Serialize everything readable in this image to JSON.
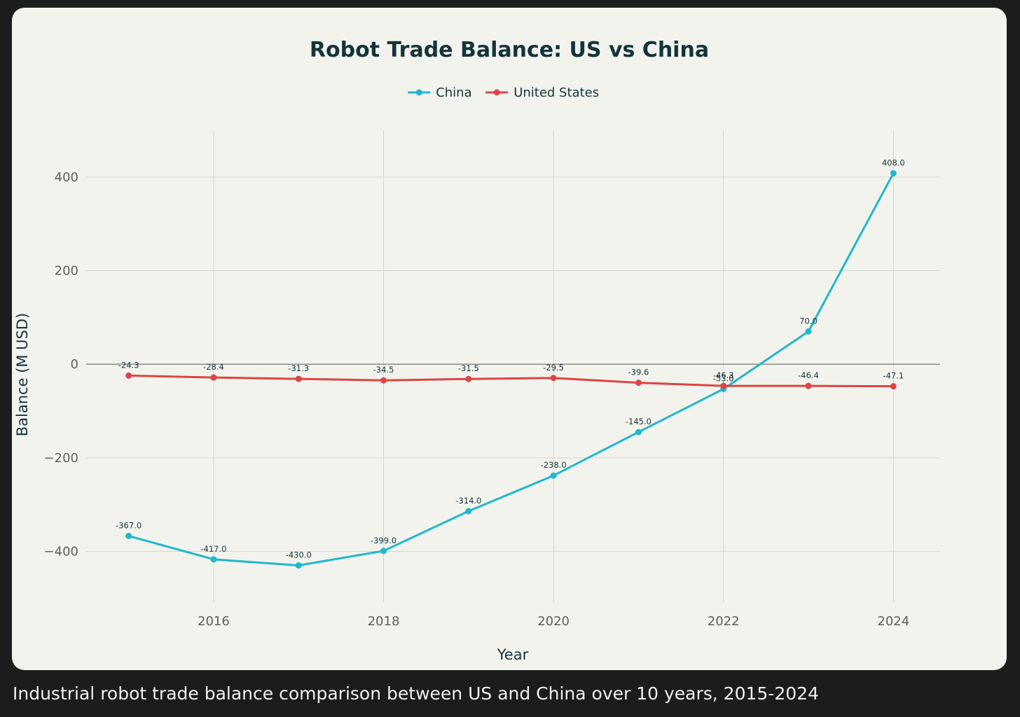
{
  "caption": "Industrial robot trade balance comparison between US and China over 10 years, 2015-2024",
  "chart_data": {
    "type": "line",
    "title": "Robot Trade Balance: US vs China",
    "xlabel": "Year",
    "ylabel": "Balance (M USD)",
    "x": [
      2015,
      2016,
      2017,
      2018,
      2019,
      2020,
      2021,
      2022,
      2023,
      2024
    ],
    "xlim": [
      2014.5,
      2024.55
    ],
    "ylim": [
      -510,
      500
    ],
    "xticks": [
      2016,
      2018,
      2020,
      2022,
      2024
    ],
    "xtick_labels": [
      "2016",
      "2018",
      "2020",
      "2022",
      "2024"
    ],
    "yticks": [
      -400,
      -200,
      0,
      200,
      400
    ],
    "ytick_labels": [
      "−400",
      "−200",
      "0",
      "200",
      "400"
    ],
    "grid": true,
    "legend_position": "top-center",
    "series": [
      {
        "name": "China",
        "color": "#1fb8cd",
        "values": [
          -367.0,
          -417.0,
          -430.0,
          -399.0,
          -314.0,
          -238.0,
          -145.0,
          -53.0,
          70.0,
          408.0
        ],
        "labels": [
          "-367.0",
          "-417.0",
          "-430.0",
          "-399.0",
          "-314.0",
          "-238.0",
          "-145.0",
          "-53.0",
          "70.0",
          "408.0"
        ]
      },
      {
        "name": "United States",
        "color": "#db4545",
        "values": [
          -24.3,
          -28.4,
          -31.3,
          -34.5,
          -31.5,
          -29.5,
          -39.6,
          -46.3,
          -46.4,
          -47.1
        ],
        "labels": [
          "-24.3",
          "-28.4",
          "-31.3",
          "-34.5",
          "-31.5",
          "-29.5",
          "-39.6",
          "-46.3",
          "-46.4",
          "-47.1"
        ]
      }
    ]
  }
}
